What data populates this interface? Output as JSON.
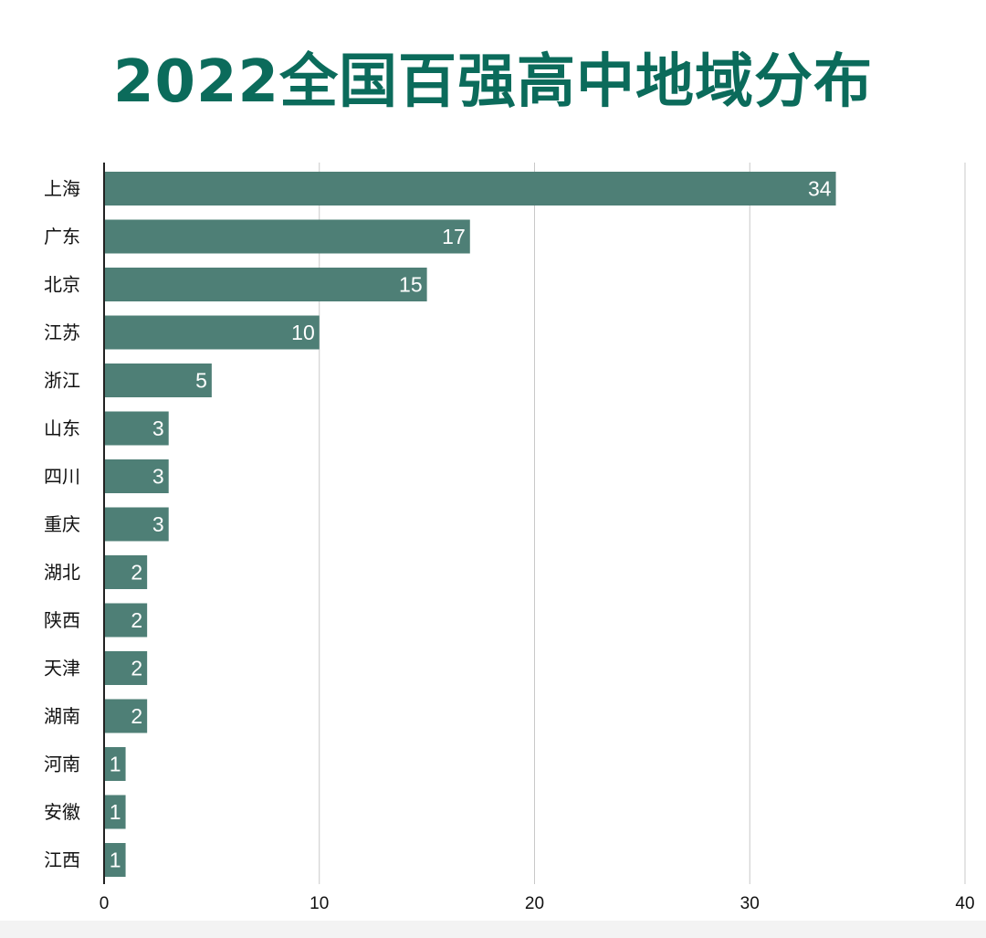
{
  "chart_data": {
    "type": "bar",
    "orientation": "horizontal",
    "title": "2022全国百强高中地域分布",
    "xlabel": "",
    "ylabel": "",
    "categories": [
      "上海",
      "广东",
      "北京",
      "江苏",
      "浙江",
      "山东",
      "四川",
      "重庆",
      "湖北",
      "陕西",
      "天津",
      "湖南",
      "河南",
      "安徽",
      "江西"
    ],
    "values": [
      34,
      17,
      15,
      10,
      5,
      3,
      3,
      3,
      2,
      2,
      2,
      2,
      1,
      1,
      1
    ],
    "xlim": [
      0,
      40
    ],
    "xticks": [
      0,
      10,
      20,
      30,
      40
    ],
    "grid": "vertical",
    "legend": "none",
    "data_labels": "inside-end",
    "colors": {
      "bar": "#4e7f76",
      "title": "#0b6b5b",
      "grid": "#c8c8c8",
      "axis": "#222222",
      "data_label": "#ffffff"
    }
  }
}
